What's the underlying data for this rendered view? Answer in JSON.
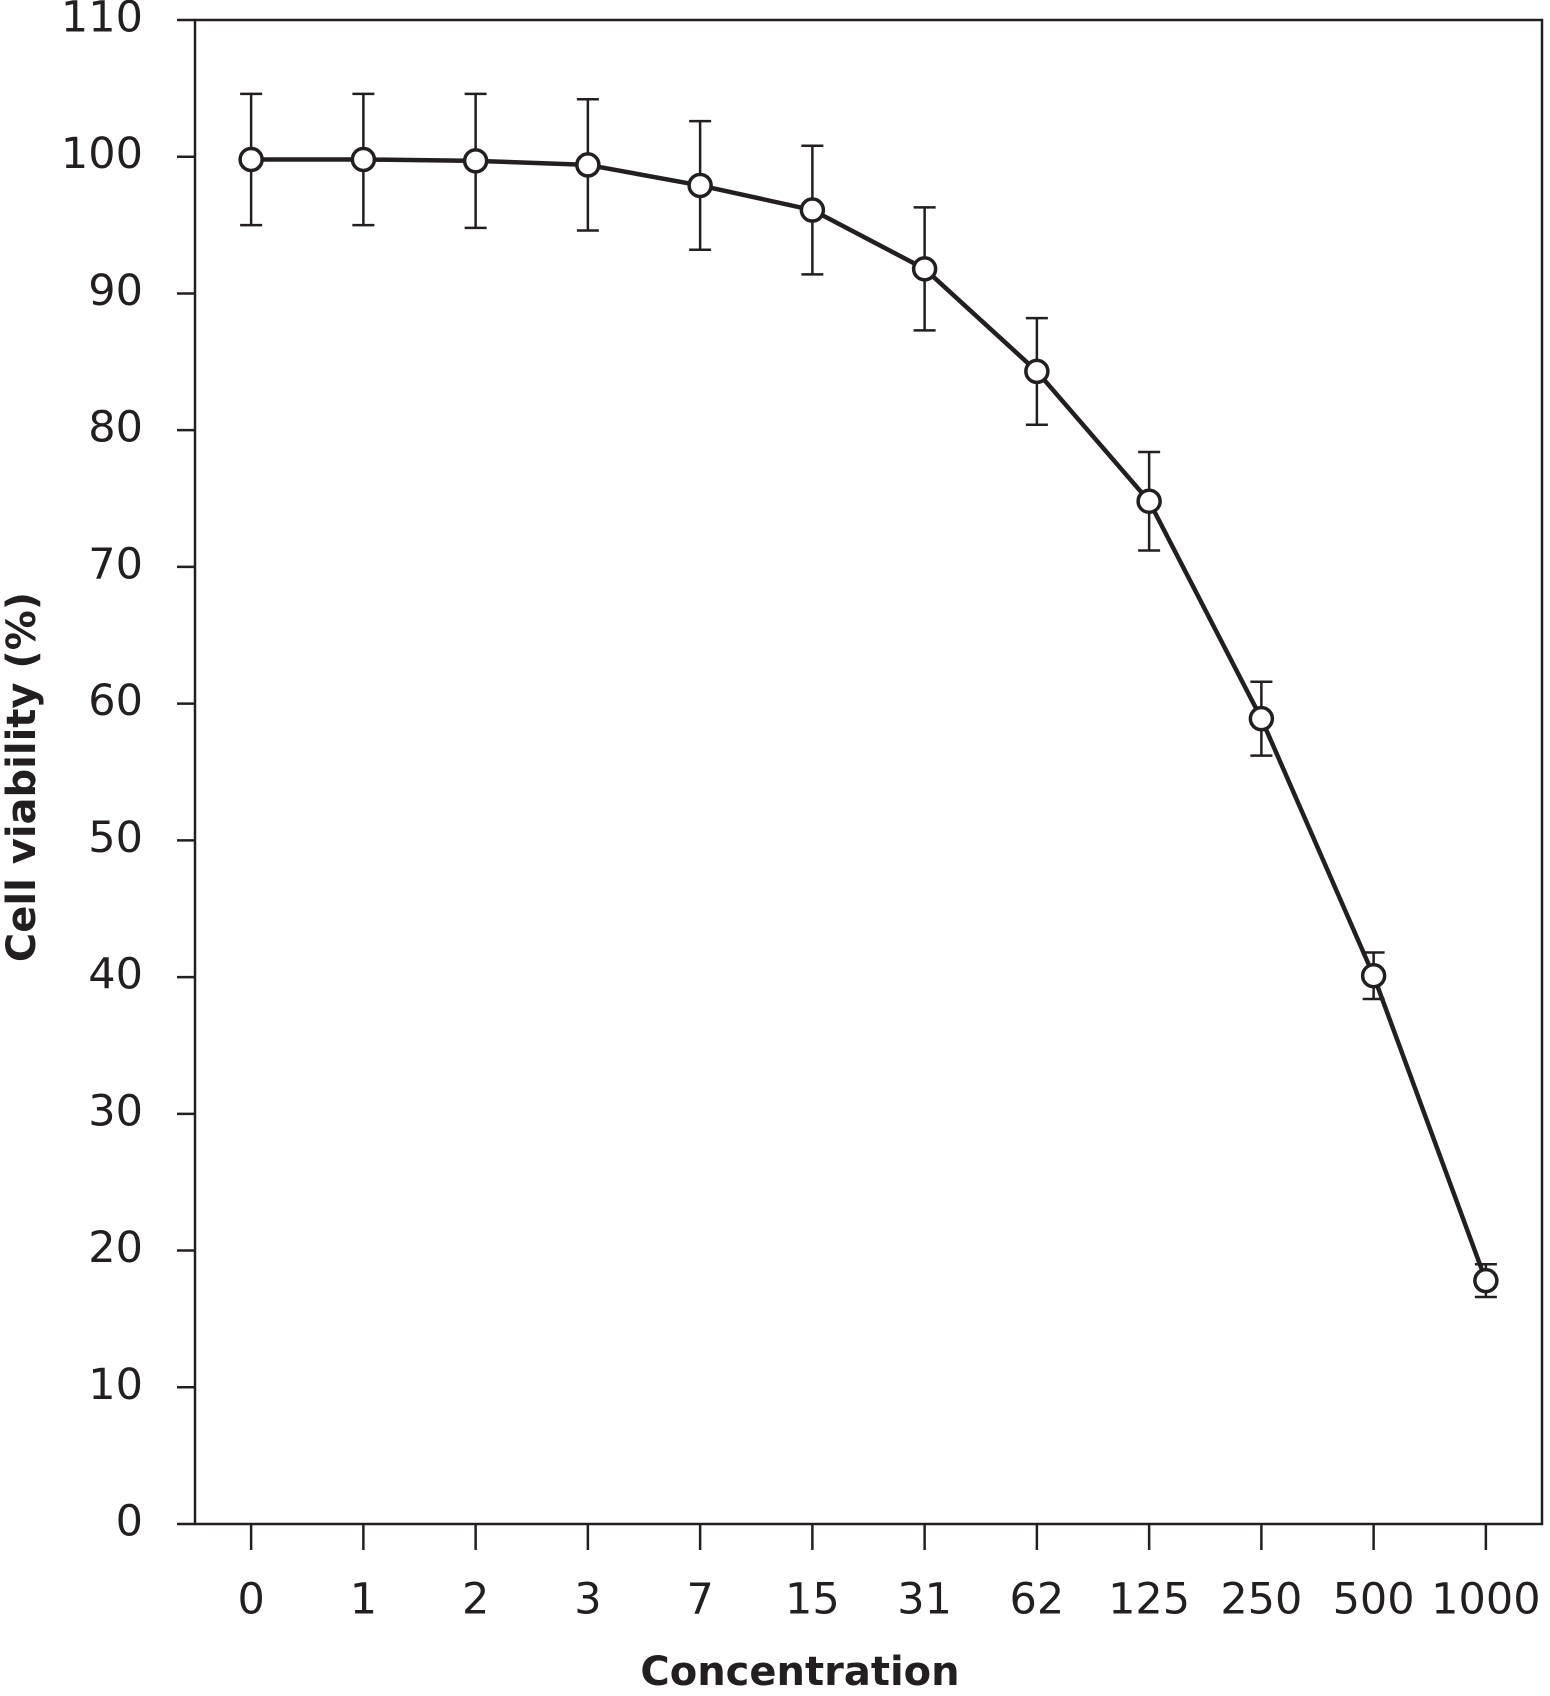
{
  "chart_data": {
    "type": "line",
    "x_label": "Concentration",
    "y_label": "Cell viability (%)",
    "categories": [
      "0",
      "1",
      "2",
      "3",
      "7",
      "15",
      "31",
      "62",
      "125",
      "250",
      "500",
      "1000"
    ],
    "values": [
      99.8,
      99.8,
      99.7,
      99.4,
      97.9,
      96.1,
      91.8,
      84.3,
      74.8,
      58.9,
      40.1,
      17.8
    ],
    "errors": [
      4.8,
      4.8,
      4.9,
      4.8,
      4.7,
      4.7,
      4.5,
      3.9,
      3.6,
      2.7,
      1.7,
      1.2
    ],
    "color": "#231f20",
    "ylim": [
      0,
      110
    ],
    "yticks": [
      0,
      10,
      20,
      30,
      40,
      50,
      60,
      70,
      80,
      90,
      100,
      110
    ]
  }
}
